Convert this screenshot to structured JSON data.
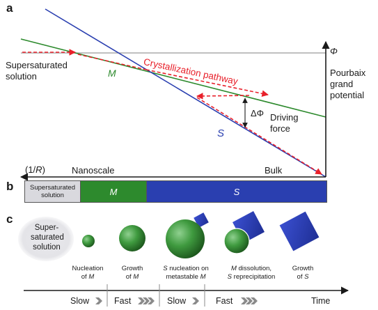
{
  "panels": {
    "a": "a",
    "b": "b",
    "c": "c"
  },
  "panel_a": {
    "phi": "Φ",
    "potential_line1": "Pourbaix",
    "potential_line2": "grand",
    "potential_line3": "potential",
    "supersat_line1": "Supersaturated",
    "supersat_line2": "solution",
    "pathway": "Crystallization pathway",
    "M": "M",
    "S": "S",
    "delta_phi": "ΔΦ",
    "driving_line1": "Driving",
    "driving_line2": "force",
    "inv_r_prefix": "(1/",
    "inv_r_var": "R",
    "inv_r_suffix": ")",
    "nanoscale": "Nanoscale",
    "bulk": "Bulk"
  },
  "panel_b": {
    "supersat_line1": "Supersaturated",
    "supersat_line2": "solution",
    "M": "M",
    "S": "S"
  },
  "panel_c": {
    "supersat_line1": "Super-",
    "supersat_line2": "saturated",
    "supersat_line3": "solution",
    "captions": [
      {
        "l1": "Nucleation",
        "l2_prefix": "of ",
        "l2_var": "M",
        "l2_suffix": ""
      },
      {
        "l1": "Growth",
        "l2_prefix": "of ",
        "l2_var": "M",
        "l2_suffix": ""
      },
      {
        "l1_var": "S",
        "l1_suffix": " nucleation on",
        "l2_prefix": "metastable ",
        "l2_var": "M",
        "l2_suffix": ""
      },
      {
        "l1_var": "M",
        "l1_suffix": " dissolution,",
        "l2_var": "S",
        "l2_suffix": " reprecipitation"
      },
      {
        "l1": "Growth",
        "l2_prefix": "of ",
        "l2_var": "S",
        "l2_suffix": ""
      }
    ],
    "timeline": [
      "Slow",
      "Fast",
      "Slow",
      "Fast"
    ],
    "time": "Time"
  },
  "colors": {
    "red": "#e8202a",
    "green": "#2d8a2d",
    "blue": "#2a3fb0",
    "gray": "#aaaaaa"
  }
}
